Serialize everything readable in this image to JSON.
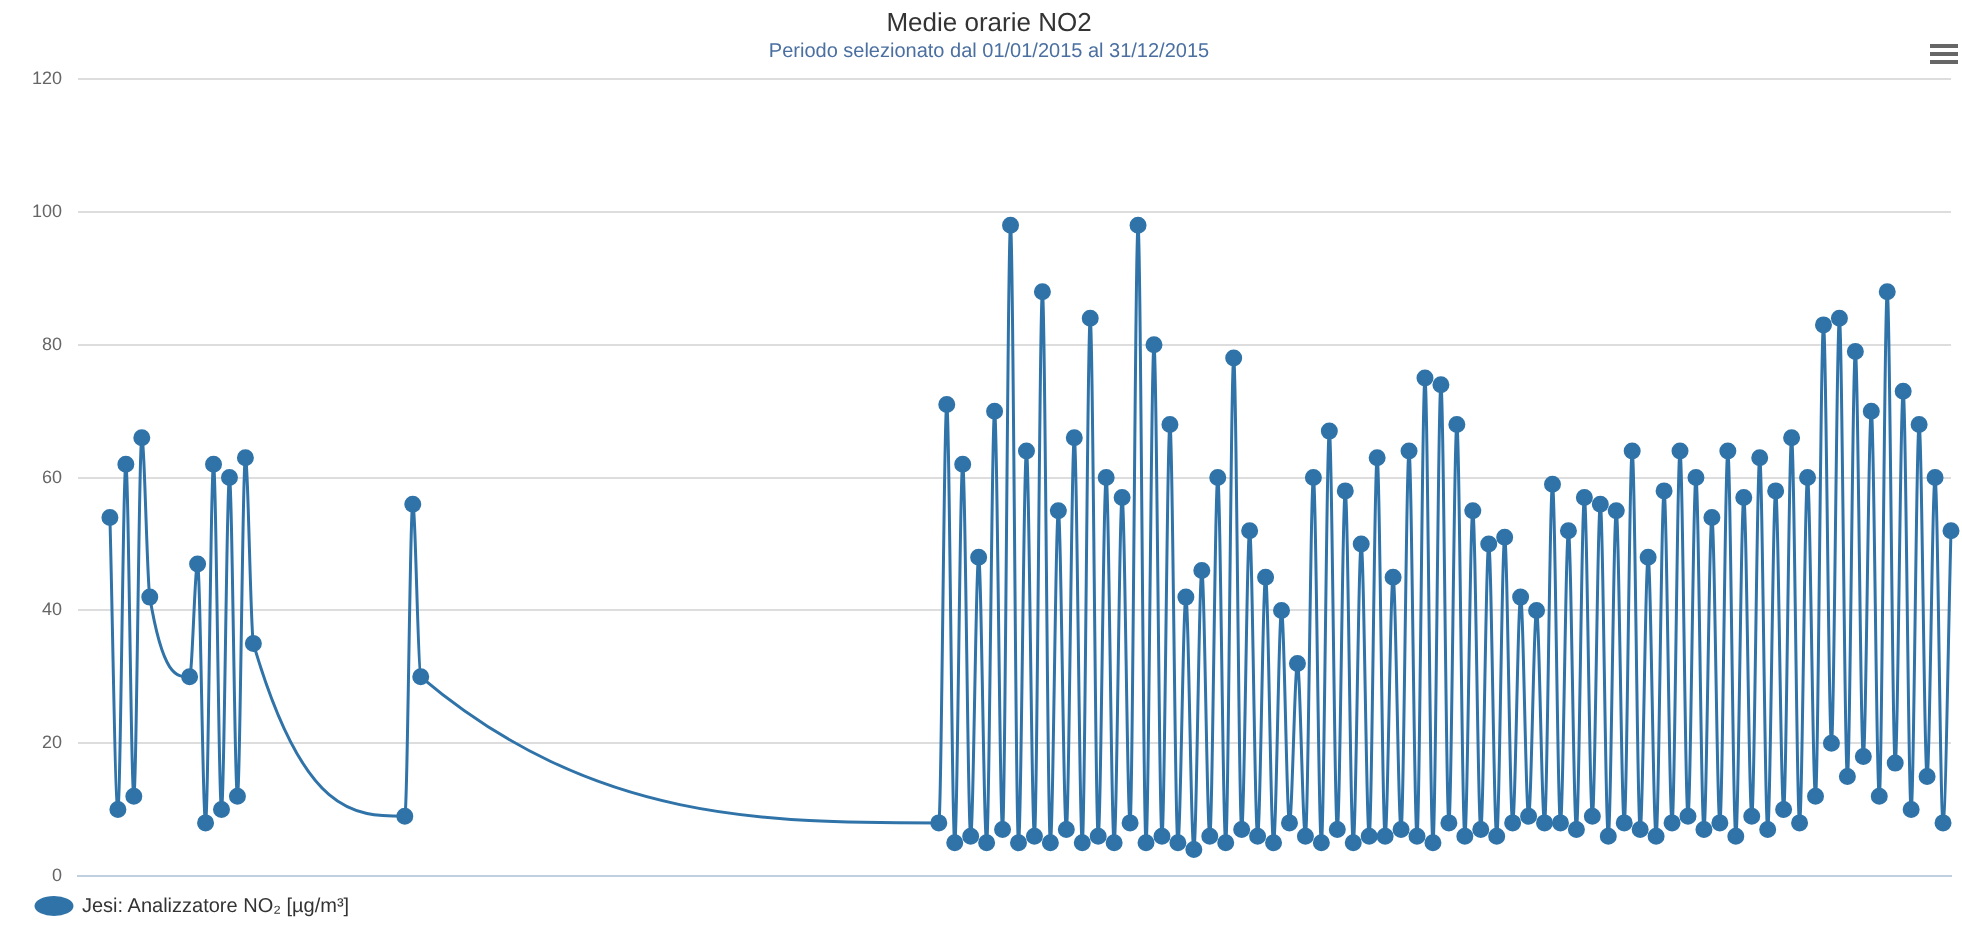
{
  "chart_data": {
    "type": "line",
    "title": "Medie orarie NO2",
    "subtitle": "Periodo selezionato dal 01/01/2015 al 31/12/2015",
    "categories": [
      null,
      null,
      null,
      null,
      null,
      null,
      null,
      null,
      null,
      null,
      null,
      null,
      null,
      null,
      null,
      null,
      null,
      null,
      null,
      null,
      null,
      null,
      null,
      null,
      null,
      null,
      null,
      null,
      null,
      null,
      null,
      null,
      null,
      null,
      null,
      null,
      null,
      null,
      null,
      null,
      null,
      null,
      null,
      null,
      null,
      null,
      null,
      null,
      null,
      null,
      null,
      null,
      null,
      null,
      null,
      null,
      null,
      null,
      null,
      null,
      null,
      null,
      null,
      null,
      null,
      null,
      null,
      null,
      null,
      null,
      null,
      null,
      null,
      null,
      null,
      null,
      null,
      null,
      null,
      null,
      null,
      null,
      null,
      null,
      null,
      null,
      null,
      null,
      null,
      null,
      null,
      null,
      null,
      null,
      null,
      null,
      null,
      null,
      null,
      null,
      null,
      null,
      null,
      null,
      null,
      null,
      null,
      null,
      null,
      null,
      null,
      null,
      null,
      null,
      null,
      null,
      null,
      null,
      null,
      null,
      null,
      null,
      null,
      null,
      null,
      null,
      null,
      null,
      null,
      null,
      null,
      null,
      null,
      null,
      null,
      null,
      null,
      null,
      null,
      null,
      null,
      null,
      null,
      null,
      null,
      null,
      null,
      null,
      null,
      null,
      null,
      null,
      null,
      null,
      null,
      null,
      null,
      null,
      null,
      null,
      null,
      null,
      null,
      null,
      null,
      null,
      null,
      null,
      null,
      null,
      null,
      null,
      null,
      null,
      null,
      null,
      null,
      null,
      null,
      null,
      null,
      null,
      null,
      null,
      null,
      null,
      null,
      null,
      null,
      null,
      null,
      null,
      null,
      null,
      null,
      null,
      null,
      null,
      null,
      null,
      null,
      null,
      null,
      null,
      null,
      null,
      null,
      null,
      null,
      null,
      null,
      null,
      null,
      null,
      null,
      null,
      null,
      null,
      null,
      null,
      null,
      null,
      null,
      null,
      null,
      null,
      null,
      null,
      null,
      null,
      null,
      null,
      null,
      null,
      null,
      null
    ],
    "series": [
      {
        "name": "Jesi: Analizzatore NO₂ [µg/m³]",
        "color": "#2f73a8",
        "values": [
          null,
          null,
          null,
          null,
          54,
          10,
          62,
          12,
          66,
          42,
          null,
          null,
          null,
          null,
          30,
          47,
          8,
          62,
          10,
          60,
          12,
          63,
          35,
          null,
          null,
          null,
          null,
          null,
          null,
          null,
          null,
          null,
          null,
          null,
          null,
          null,
          null,
          null,
          null,
          null,
          null,
          9,
          56,
          30,
          null,
          null,
          null,
          null,
          null,
          null,
          null,
          null,
          null,
          null,
          null,
          null,
          null,
          null,
          null,
          null,
          null,
          null,
          null,
          null,
          null,
          null,
          null,
          null,
          null,
          null,
          null,
          null,
          null,
          null,
          null,
          null,
          null,
          null,
          null,
          null,
          null,
          null,
          null,
          null,
          null,
          null,
          null,
          null,
          null,
          null,
          null,
          null,
          null,
          null,
          null,
          null,
          null,
          null,
          null,
          null,
          null,
          null,
          null,
          null,
          null,
          null,
          null,
          null,
          8,
          71,
          5,
          62,
          6,
          48,
          5,
          70,
          7,
          98,
          5,
          64,
          6,
          88,
          5,
          55,
          7,
          66,
          5,
          84,
          6,
          60,
          5,
          57,
          8,
          98,
          5,
          80,
          6,
          68,
          5,
          42,
          4,
          46,
          6,
          60,
          5,
          78,
          7,
          52,
          6,
          45,
          5,
          40,
          8,
          32,
          6,
          60,
          5,
          67,
          7,
          58,
          5,
          50,
          6,
          63,
          6,
          45,
          7,
          64,
          6,
          75,
          5,
          74,
          8,
          68,
          6,
          55,
          7,
          50,
          6,
          51,
          8,
          42,
          9,
          40,
          8,
          59,
          8,
          52,
          7,
          57,
          9,
          56,
          6,
          55,
          8,
          64,
          7,
          48,
          6,
          58,
          8,
          64,
          9,
          60,
          7,
          54,
          8,
          64,
          6,
          57,
          9,
          63,
          7,
          58,
          10,
          66,
          8,
          60,
          12,
          83,
          20,
          84,
          15,
          79,
          18,
          70,
          12,
          88,
          17,
          73,
          10,
          68,
          15,
          60,
          8,
          52
        ]
      }
    ],
    "ylim": [
      0,
      120
    ],
    "yticks": [
      0,
      20,
      40,
      60,
      80,
      100,
      120
    ],
    "grid": "y",
    "legend": "bottom left",
    "marker": "circle",
    "tick_labels": "y"
  }
}
